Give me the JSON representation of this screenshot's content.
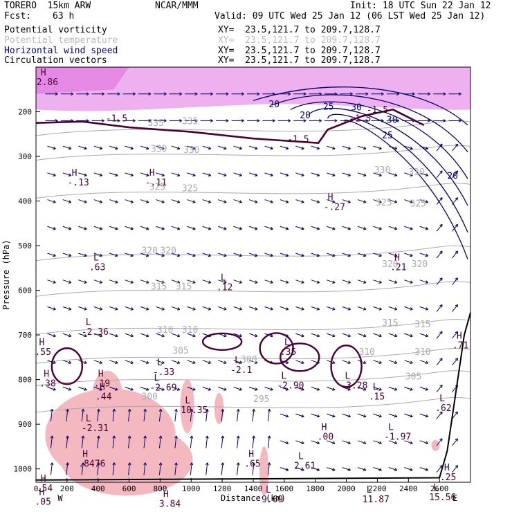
{
  "header": {
    "model": "TORERO  15km ARW",
    "fcst_label": "Fcst:",
    "fcst_value": "63 h",
    "org": "NCAR/MMM",
    "init": "Init: 18 UTC Sun 22 Jan 12",
    "valid": "Valid: 09 UTC Wed 25 Jan 12 (06 LST Wed 25 Jan 12)",
    "fields": [
      {
        "name": "Potential vorticity",
        "xy": "XY=  23.5,121.7 to 209.7,128.7",
        "color": "#000000"
      },
      {
        "name": "Potential temperature",
        "xy": "XY=  23.5,121.7 to 209.7,128.7",
        "color": "#bbbbbb"
      },
      {
        "name": "Horizontal wind speed",
        "xy": "XY=  23.5,121.7 to 209.7,128.7",
        "color": "#000080"
      },
      {
        "name": "Circulation vectors",
        "xy": "XY=  23.5,121.7 to 209.7,128.7",
        "color": "#000000"
      }
    ]
  },
  "chart_data": {
    "type": "cross-section",
    "xlabel": "Distance (km)",
    "ylabel": "Pressure (hPa)",
    "xlim": [
      0,
      2800
    ],
    "ylim": [
      1030,
      100
    ],
    "x_ticks": [
      "0",
      "200",
      "400",
      "600",
      "800",
      "1000",
      "1200",
      "1400",
      "1600",
      "1800",
      "2000",
      "2200",
      "2400",
      "2600"
    ],
    "y_ticks": [
      "200",
      "300",
      "400",
      "500",
      "600",
      "700",
      "800",
      "900",
      "1000"
    ],
    "x_ticks_values": [
      0,
      200,
      400,
      600,
      800,
      1000,
      1200,
      1400,
      1600,
      1800,
      2000,
      2200,
      2400,
      2600
    ],
    "y_ticks_values": [
      200,
      300,
      400,
      500,
      600,
      700,
      800,
      900,
      1000
    ],
    "end_labels": {
      "left": "W",
      "right": "E"
    },
    "theta_contours": [
      {
        "label": "335",
        "p": 235
      },
      {
        "label": "330",
        "p": 290
      },
      {
        "label": "325",
        "p": 375
      },
      {
        "label": "320",
        "p": 515
      },
      {
        "label": "315",
        "p": 595
      },
      {
        "label": "310",
        "p": 680
      },
      {
        "label": "305",
        "p": 745
      },
      {
        "label": "300",
        "p": 795
      },
      {
        "label": "295",
        "p": 855
      }
    ],
    "theta_labels": [
      {
        "text": "335",
        "x": 720,
        "p": 232
      },
      {
        "text": "335",
        "x": 940,
        "p": 228
      },
      {
        "text": "330",
        "x": 740,
        "p": 290
      },
      {
        "text": "330",
        "x": 950,
        "p": 292
      },
      {
        "text": "325",
        "x": 730,
        "p": 375
      },
      {
        "text": "325",
        "x": 940,
        "p": 378
      },
      {
        "text": "330",
        "x": 2180,
        "p": 337
      },
      {
        "text": "330",
        "x": 2400,
        "p": 342
      },
      {
        "text": "325",
        "x": 2190,
        "p": 410
      },
      {
        "text": "325",
        "x": 2410,
        "p": 412
      },
      {
        "text": "320",
        "x": 680,
        "p": 518
      },
      {
        "text": "320",
        "x": 800,
        "p": 518
      },
      {
        "text": "320",
        "x": 2230,
        "p": 548
      },
      {
        "text": "320",
        "x": 2420,
        "p": 548
      },
      {
        "text": "315",
        "x": 740,
        "p": 598
      },
      {
        "text": "315",
        "x": 900,
        "p": 598
      },
      {
        "text": "315",
        "x": 2230,
        "p": 680
      },
      {
        "text": "315",
        "x": 2440,
        "p": 683
      },
      {
        "text": "310",
        "x": 780,
        "p": 695
      },
      {
        "text": "310",
        "x": 940,
        "p": 695
      },
      {
        "text": "310",
        "x": 2080,
        "p": 745
      },
      {
        "text": "310",
        "x": 2440,
        "p": 745
      },
      {
        "text": "305",
        "x": 880,
        "p": 742
      },
      {
        "text": "305",
        "x": 2380,
        "p": 800
      },
      {
        "text": "300",
        "x": 1320,
        "p": 762
      },
      {
        "text": "295",
        "x": 1400,
        "p": 850
      },
      {
        "text": "300",
        "x": 680,
        "p": 845
      }
    ],
    "wind_labels": [
      {
        "text": "20",
        "x": 1500,
        "p": 190
      },
      {
        "text": "20",
        "x": 1700,
        "p": 215
      },
      {
        "text": "25",
        "x": 1850,
        "p": 195
      },
      {
        "text": "30",
        "x": 2030,
        "p": 197
      },
      {
        "text": "30",
        "x": 2260,
        "p": 225
      },
      {
        "text": "25",
        "x": 2230,
        "p": 260
      },
      {
        "text": "20",
        "x": 2650,
        "p": 350
      }
    ],
    "pv_labels": [
      {
        "text": "-1.5",
        "x": 450,
        "p": 222
      },
      {
        "text": "-1.5",
        "x": 1620,
        "p": 268
      },
      {
        "text": "-1.5",
        "x": 2020,
        "p": 222
      },
      {
        "text": "-1.5",
        "x": 2130,
        "p": 202
      }
    ],
    "extrema": [
      {
        "kind": "H",
        "value": "2.86",
        "x": 30,
        "p": 140
      },
      {
        "kind": "H",
        "value": "-.13",
        "x": 230,
        "p": 365
      },
      {
        "kind": "H",
        "value": "-.11",
        "x": 730,
        "p": 365
      },
      {
        "kind": "H",
        "value": "-.27",
        "x": 1880,
        "p": 420
      },
      {
        "kind": "L",
        "value": ".63",
        "x": 370,
        "p": 555
      },
      {
        "kind": "L",
        "value": ".12",
        "x": 1190,
        "p": 600
      },
      {
        "kind": "H",
        "value": ".21",
        "x": 2310,
        "p": 555
      },
      {
        "kind": "L",
        "value": "-2.36",
        "x": 320,
        "p": 700
      },
      {
        "kind": "H",
        "value": ".55",
        "x": 20,
        "p": 745
      },
      {
        "kind": "L",
        "value": "-.33",
        "x": 780,
        "p": 790
      },
      {
        "kind": "L",
        "value": "-2.69",
        "x": 760,
        "p": 825
      },
      {
        "kind": "L",
        "value": "-2.1",
        "x": 1280,
        "p": 785
      },
      {
        "kind": "L",
        "value": ".35",
        "x": 1600,
        "p": 745
      },
      {
        "kind": "L",
        "value": "-2.90",
        "x": 1580,
        "p": 820
      },
      {
        "kind": "L",
        "value": "-3.28",
        "x": 1990,
        "p": 820
      },
      {
        "kind": "H",
        "value": ".38",
        "x": 50,
        "p": 815
      },
      {
        "kind": "H",
        "value": ".19",
        "x": 400,
        "p": 815
      },
      {
        "kind": "H",
        "value": ".44",
        "x": 410,
        "p": 845
      },
      {
        "kind": "L",
        "value": "10.35",
        "x": 960,
        "p": 875
      },
      {
        "kind": "L",
        "value": ".15",
        "x": 2170,
        "p": 845
      },
      {
        "kind": "L",
        "value": ".62",
        "x": 2600,
        "p": 870
      },
      {
        "kind": "L",
        "value": "-2.31",
        "x": 320,
        "p": 915
      },
      {
        "kind": "H",
        "value": ".00",
        "x": 1840,
        "p": 935
      },
      {
        "kind": "L",
        "value": "-1.97",
        "x": 2270,
        "p": 935
      },
      {
        "kind": "H",
        "value": ".65",
        "x": 1370,
        "p": 995
      },
      {
        "kind": "L",
        "value": "2.61",
        "x": 1690,
        "p": 1000
      },
      {
        "kind": "H",
        "value": ".8476",
        "x": 300,
        "p": 995
      },
      {
        "kind": "H",
        "value": ".25",
        "x": 2630,
        "p": 1025
      },
      {
        "kind": "H",
        "value": ".54",
        "x": 30,
        "p": 1050
      },
      {
        "kind": "H",
        "value": "3.84",
        "x": 820,
        "p": 1085
      },
      {
        "kind": "L",
        "value": "9.69",
        "x": 1480,
        "p": 1075
      },
      {
        "kind": "L",
        "value": "11.87",
        "x": 2130,
        "p": 1075
      },
      {
        "kind": "L",
        "value": "15.56",
        "x": 2560,
        "p": 1070
      },
      {
        "kind": "H",
        "value": ".05",
        "x": 20,
        "p": 1080
      },
      {
        "kind": "H",
        "value": ".71",
        "x": 2710,
        "p": 730
      }
    ],
    "colors": {
      "pv_contour": "#4a0030",
      "theta": "#aaaaaa",
      "wind": "#000070",
      "vector": "#000070",
      "pv_pos_fill": "#f4b8c0",
      "pv_high_fill": "#e070e0",
      "terrain": "#000000"
    }
  }
}
